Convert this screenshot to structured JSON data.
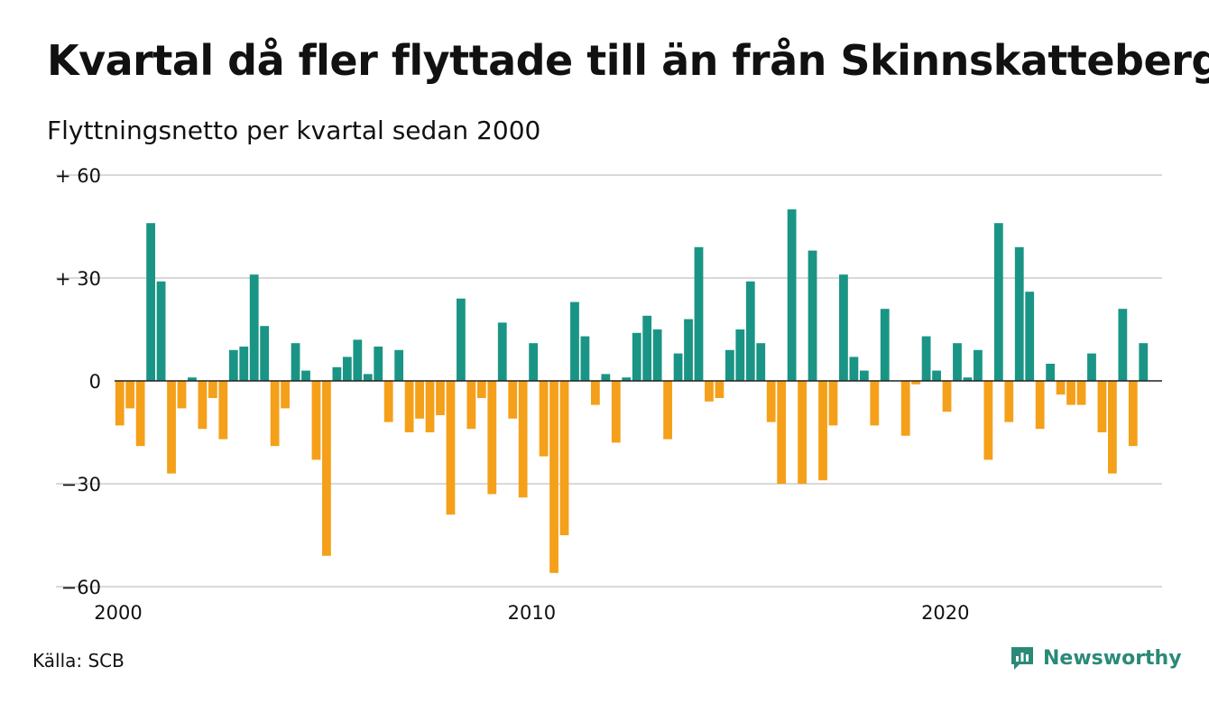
{
  "header": {
    "title": "Kvartal då fler flyttade till än från Skinnskatteberg",
    "subtitle": "Flyttningsnetto per kvartal sedan 2000"
  },
  "footer": {
    "source": "Källa: SCB",
    "brand": "Newsworthy"
  },
  "colors": {
    "positive": "#1a9585",
    "negative": "#f5a01a",
    "grid": "#d9d9d9",
    "brand": "#2a8a77"
  },
  "chart_data": {
    "type": "bar",
    "title": "Kvartal då fler flyttade till än från Skinnskatteberg",
    "subtitle": "Flyttningsnetto per kvartal sedan 2000",
    "x_start": 2000,
    "quarters_per_year": 4,
    "ylim": [
      -60,
      60
    ],
    "y_ticks": [
      60,
      30,
      0,
      -30,
      -60
    ],
    "y_tick_labels": [
      "+ 60",
      "+ 30",
      "0",
      "−30",
      "−60"
    ],
    "x_ticks": [
      2000,
      2010,
      2020
    ],
    "x_tick_labels": [
      "2000",
      "2010",
      "2020"
    ],
    "grid": true,
    "values": [
      -13,
      -8,
      -19,
      46,
      29,
      -27,
      -8,
      1,
      -14,
      -5,
      -17,
      9,
      10,
      31,
      16,
      -19,
      -8,
      11,
      3,
      -23,
      -51,
      4,
      7,
      12,
      2,
      10,
      -12,
      9,
      -15,
      -11,
      -15,
      -10,
      -39,
      24,
      -14,
      -5,
      -33,
      17,
      -11,
      -34,
      11,
      -22,
      -56,
      -45,
      23,
      13,
      -7,
      2,
      -18,
      1,
      14,
      19,
      15,
      -17,
      8,
      18,
      39,
      -6,
      -5,
      9,
      15,
      29,
      11,
      -12,
      -30,
      50,
      -30,
      38,
      -29,
      -13,
      31,
      7,
      3,
      -13,
      21,
      0,
      -16,
      -1,
      13,
      3,
      -9,
      11,
      1,
      9,
      -23,
      46,
      -12,
      39,
      26,
      -14,
      5,
      -4,
      -7,
      -7,
      8,
      -15,
      -27,
      21,
      -19,
      11
    ]
  }
}
